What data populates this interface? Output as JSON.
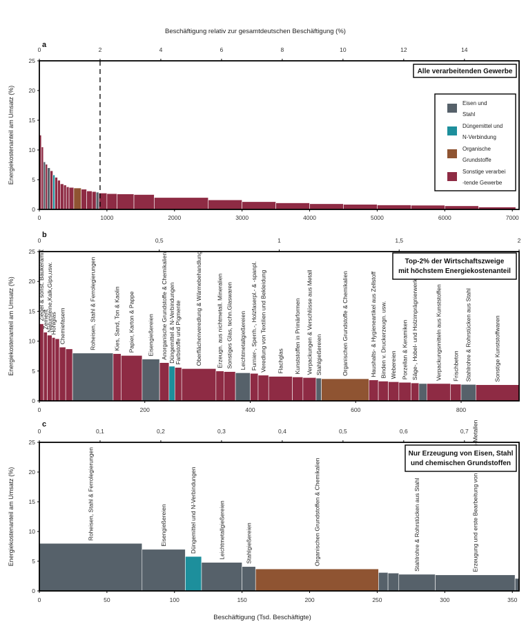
{
  "top_axis_label": "Beschäftigung relativ zur gesamtdeutschen Beschäftigung (%)",
  "bottom_axis_label": "Beschäftigung (Tsd. Beschäftigte)",
  "colors": {
    "eisen": "#56616a",
    "duenge": "#1d8f9c",
    "organisch": "#8f5432",
    "sonstige": "#8e2b44"
  },
  "chart_data": [
    {
      "panel": "a",
      "type": "bar",
      "title": "Alle verarbeitenden Gewerbe",
      "ylabel": "Energiekostenanteil am Umsatz (%)",
      "xlim": [
        0,
        7100
      ],
      "ylim": [
        0,
        25
      ],
      "x_ticks": [
        0,
        1000,
        2000,
        3000,
        4000,
        5000,
        6000,
        7000
      ],
      "y_ticks": [
        0,
        5,
        10,
        15,
        20,
        25
      ],
      "top_xlim": [
        0,
        15.8
      ],
      "top_ticks": [
        0,
        2,
        4,
        6,
        8,
        10,
        12,
        14
      ],
      "dashed_line_top": 2,
      "legend": [
        {
          "label": "Eisen und Stahl",
          "color_key": "eisen"
        },
        {
          "label": "Düngemittel und N-Verbindung",
          "color_key": "duenge"
        },
        {
          "label": "Organische Grundstoffe",
          "color_key": "organisch"
        },
        {
          "label": "Sonstige verarbeitende Gewerbe",
          "color_key": "sonstige"
        }
      ],
      "bars": [
        {
          "x0": 0,
          "x1": 30,
          "y": 12.5,
          "c": "sonstige"
        },
        {
          "x0": 30,
          "x1": 60,
          "y": 10.5,
          "c": "sonstige"
        },
        {
          "x0": 60,
          "x1": 90,
          "y": 8.0,
          "c": "eisen"
        },
        {
          "x0": 90,
          "x1": 120,
          "y": 7.6,
          "c": "sonstige"
        },
        {
          "x0": 120,
          "x1": 160,
          "y": 7.0,
          "c": "eisen"
        },
        {
          "x0": 160,
          "x1": 200,
          "y": 6.5,
          "c": "sonstige"
        },
        {
          "x0": 200,
          "x1": 230,
          "y": 5.8,
          "c": "duenge"
        },
        {
          "x0": 230,
          "x1": 270,
          "y": 5.4,
          "c": "sonstige"
        },
        {
          "x0": 270,
          "x1": 310,
          "y": 4.9,
          "c": "sonstige"
        },
        {
          "x0": 310,
          "x1": 360,
          "y": 4.3,
          "c": "sonstige"
        },
        {
          "x0": 360,
          "x1": 400,
          "y": 4.1,
          "c": "sonstige"
        },
        {
          "x0": 400,
          "x1": 440,
          "y": 3.8,
          "c": "sonstige"
        },
        {
          "x0": 440,
          "x1": 510,
          "y": 3.7,
          "c": "sonstige"
        },
        {
          "x0": 510,
          "x1": 620,
          "y": 3.6,
          "c": "organisch"
        },
        {
          "x0": 620,
          "x1": 700,
          "y": 3.4,
          "c": "sonstige"
        },
        {
          "x0": 700,
          "x1": 780,
          "y": 3.1,
          "c": "sonstige"
        },
        {
          "x0": 780,
          "x1": 840,
          "y": 3.0,
          "c": "sonstige"
        },
        {
          "x0": 840,
          "x1": 880,
          "y": 2.9,
          "c": "eisen"
        },
        {
          "x0": 880,
          "x1": 1000,
          "y": 2.75,
          "c": "sonstige"
        },
        {
          "x0": 1000,
          "x1": 1150,
          "y": 2.65,
          "c": "sonstige"
        },
        {
          "x0": 1150,
          "x1": 1400,
          "y": 2.6,
          "c": "sonstige"
        },
        {
          "x0": 1400,
          "x1": 1700,
          "y": 2.5,
          "c": "sonstige"
        },
        {
          "x0": 1700,
          "x1": 2500,
          "y": 2.0,
          "c": "sonstige"
        },
        {
          "x0": 2500,
          "x1": 3000,
          "y": 1.6,
          "c": "sonstige"
        },
        {
          "x0": 3000,
          "x1": 3500,
          "y": 1.3,
          "c": "sonstige"
        },
        {
          "x0": 3500,
          "x1": 4000,
          "y": 1.1,
          "c": "sonstige"
        },
        {
          "x0": 4000,
          "x1": 4500,
          "y": 0.95,
          "c": "sonstige"
        },
        {
          "x0": 4500,
          "x1": 5000,
          "y": 0.85,
          "c": "sonstige"
        },
        {
          "x0": 5000,
          "x1": 5500,
          "y": 0.75,
          "c": "sonstige"
        },
        {
          "x0": 5500,
          "x1": 6000,
          "y": 0.7,
          "c": "sonstige"
        },
        {
          "x0": 6000,
          "x1": 6500,
          "y": 0.6,
          "c": "sonstige"
        },
        {
          "x0": 6500,
          "x1": 7050,
          "y": 0.4,
          "c": "sonstige"
        }
      ]
    },
    {
      "panel": "b",
      "type": "bar",
      "title": "Top-2% der Wirtschaftszweige mit höchstem Energiekostenanteil",
      "ylabel": "Energiekostenanteil am Umsatz (%)",
      "xlim": [
        0,
        910
      ],
      "ylim": [
        0,
        25
      ],
      "x_ticks": [
        0,
        200,
        400,
        600,
        800
      ],
      "y_ticks": [
        0,
        5,
        10,
        15,
        20,
        25
      ],
      "top_xlim": [
        0,
        2
      ],
      "top_ticks": [
        0,
        0.5,
        1,
        1.5,
        2
      ],
      "bars": [
        {
          "x0": 0,
          "x1": 8,
          "y": 12.9,
          "c": "sonstige",
          "label": "Ziegel & sonst. Baukeramik"
        },
        {
          "x0": 8,
          "x1": 15,
          "y": 11.5,
          "c": "sonstige",
          "label": "Zement"
        },
        {
          "x0": 15,
          "x1": 24,
          "y": 11.0,
          "c": "sonstige",
          "label": "Natursteine,Kalk,Gips,usw."
        },
        {
          "x0": 24,
          "x1": 30,
          "y": 10.6,
          "c": "sonstige",
          "label": "Hohlglas"
        },
        {
          "x0": 30,
          "x1": 38,
          "y": 10.4,
          "c": "sonstige",
          "label": ""
        },
        {
          "x0": 38,
          "x1": 50,
          "y": 9.0,
          "c": "sonstige",
          "label": "Chemiefasern"
        },
        {
          "x0": 50,
          "x1": 63,
          "y": 8.7,
          "c": "sonstige",
          "label": ""
        },
        {
          "x0": 63,
          "x1": 140,
          "y": 8.0,
          "c": "eisen",
          "label": "Roheisen, Stahl & Ferrolegierungen"
        },
        {
          "x0": 140,
          "x1": 155,
          "y": 7.9,
          "c": "sonstige",
          "label": "Kies, Sand, Ton & Kaolin"
        },
        {
          "x0": 155,
          "x1": 195,
          "y": 7.6,
          "c": "sonstige",
          "label": "Papier, Karton & Pappe"
        },
        {
          "x0": 195,
          "x1": 228,
          "y": 7.0,
          "c": "eisen",
          "label": "Eisengießereien"
        },
        {
          "x0": 228,
          "x1": 246,
          "y": 6.4,
          "c": "sonstige",
          "label": "Anorganische Grundstoffe & Chemikalien"
        },
        {
          "x0": 246,
          "x1": 257,
          "y": 5.8,
          "c": "duenge",
          "label": "Düngemittel & N-Verbindungen"
        },
        {
          "x0": 257,
          "x1": 270,
          "y": 5.6,
          "c": "sonstige",
          "label": "Farbstoffe und Pigmente"
        },
        {
          "x0": 270,
          "x1": 335,
          "y": 5.4,
          "c": "sonstige",
          "label": "Oberflächenveredlung & Wärmebehandlung"
        },
        {
          "x0": 335,
          "x1": 350,
          "y": 5.0,
          "c": "sonstige",
          "label": "Erzeugn. aus nichtmetall. Mineralien"
        },
        {
          "x0": 350,
          "x1": 372,
          "y": 4.9,
          "c": "sonstige",
          "label": "Sonstiges Glas, techn.Glaswaren"
        },
        {
          "x0": 372,
          "x1": 400,
          "y": 4.7,
          "c": "eisen",
          "label": "Leichtmetallgießereien"
        },
        {
          "x0": 400,
          "x1": 415,
          "y": 4.6,
          "c": "sonstige",
          "label": "Furnier-, Sperrh.-, Holzfaserpl.- & -spanpl."
        },
        {
          "x0": 415,
          "x1": 435,
          "y": 4.3,
          "c": "sonstige",
          "label": "Veredlung von Textilien und Bekleidung"
        },
        {
          "x0": 435,
          "x1": 480,
          "y": 4.1,
          "c": "sonstige",
          "label": "Flachglas"
        },
        {
          "x0": 480,
          "x1": 500,
          "y": 4.0,
          "c": "sonstige",
          "label": "Kunststoffen in Primärformen"
        },
        {
          "x0": 500,
          "x1": 525,
          "y": 3.9,
          "c": "sonstige",
          "label": "Verpackungen & Verschlüsse aus Metall"
        },
        {
          "x0": 525,
          "x1": 535,
          "y": 3.8,
          "c": "eisen",
          "label": "Stahlgießereien"
        },
        {
          "x0": 535,
          "x1": 625,
          "y": 3.7,
          "c": "organisch",
          "label": "Organischen Grundstoffe & Chemikalien"
        },
        {
          "x0": 625,
          "x1": 643,
          "y": 3.5,
          "c": "sonstige",
          "label": "Haushalts- & Hygieneartikel aus Zellstoff"
        },
        {
          "x0": 643,
          "x1": 662,
          "y": 3.3,
          "c": "sonstige",
          "label": "Binden v. Druckerzeugn. usw."
        },
        {
          "x0": 662,
          "x1": 682,
          "y": 3.2,
          "c": "sonstige",
          "label": "Webereien"
        },
        {
          "x0": 682,
          "x1": 705,
          "y": 3.1,
          "c": "sonstige",
          "label": "Porzellan & Keramiken"
        },
        {
          "x0": 705,
          "x1": 720,
          "y": 3.0,
          "c": "sonstige",
          "label": "Säge-, Hobel- und Holzimprägnierwerke"
        },
        {
          "x0": 720,
          "x1": 735,
          "y": 2.9,
          "c": "eisen",
          "label": ""
        },
        {
          "x0": 735,
          "x1": 780,
          "y": 2.9,
          "c": "sonstige",
          "label": "Verpackungsmitteln aus Kunststoffen"
        },
        {
          "x0": 780,
          "x1": 800,
          "y": 2.8,
          "c": "sonstige",
          "label": "Frischbeton"
        },
        {
          "x0": 800,
          "x1": 828,
          "y": 2.75,
          "c": "eisen",
          "label": "Stahlrohre & Rohrstücken aus Stahl"
        },
        {
          "x0": 828,
          "x1": 910,
          "y": 2.7,
          "c": "sonstige",
          "label": "Sonstige Kunststoffwaren"
        }
      ]
    },
    {
      "panel": "c",
      "type": "bar",
      "title": "Nur Erzeugung von Eisen, Stahl und chemischen Grundstoffen",
      "ylabel": "Energiekostenanteil am Umsatz (%)",
      "xlim": [
        0,
        355
      ],
      "ylim": [
        0,
        25
      ],
      "x_ticks": [
        0,
        50,
        100,
        150,
        200,
        250,
        300,
        350
      ],
      "y_ticks": [
        0,
        5,
        10,
        15,
        20,
        25
      ],
      "top_xlim": [
        0,
        0.79
      ],
      "top_ticks": [
        0,
        0.1,
        0.2,
        0.3,
        0.4,
        0.5,
        0.6,
        0.7
      ],
      "bars": [
        {
          "x0": 0,
          "x1": 76,
          "y": 8.0,
          "c": "eisen",
          "label": "Roheisen, Stahl & Ferrolegierungen"
        },
        {
          "x0": 76,
          "x1": 108,
          "y": 7.0,
          "c": "eisen",
          "label": "Eisengießereien"
        },
        {
          "x0": 108,
          "x1": 120,
          "y": 5.8,
          "c": "duenge",
          "label": "Düngemittel und N-Verbindungen"
        },
        {
          "x0": 120,
          "x1": 150,
          "y": 4.8,
          "c": "eisen",
          "label": "Leichtmetallgießereien"
        },
        {
          "x0": 150,
          "x1": 160,
          "y": 4.1,
          "c": "eisen",
          "label": "Stahlgießereien"
        },
        {
          "x0": 160,
          "x1": 251,
          "y": 3.7,
          "c": "organisch",
          "label": "Organischen Grundstoffen & Chemikalien"
        },
        {
          "x0": 251,
          "x1": 258,
          "y": 3.1,
          "c": "eisen",
          "label": ""
        },
        {
          "x0": 258,
          "x1": 266,
          "y": 3.0,
          "c": "eisen",
          "label": ""
        },
        {
          "x0": 266,
          "x1": 293,
          "y": 2.8,
          "c": "eisen",
          "label": "Stahlrohre & Rohrstücken aus Stahl"
        },
        {
          "x0": 293,
          "x1": 352,
          "y": 2.7,
          "c": "eisen",
          "label": "Erzeugung und erste Bearbeitung von Nichteisen-Metallen"
        },
        {
          "x0": 352,
          "x1": 355,
          "y": 2.1,
          "c": "eisen",
          "label": ""
        }
      ]
    }
  ]
}
